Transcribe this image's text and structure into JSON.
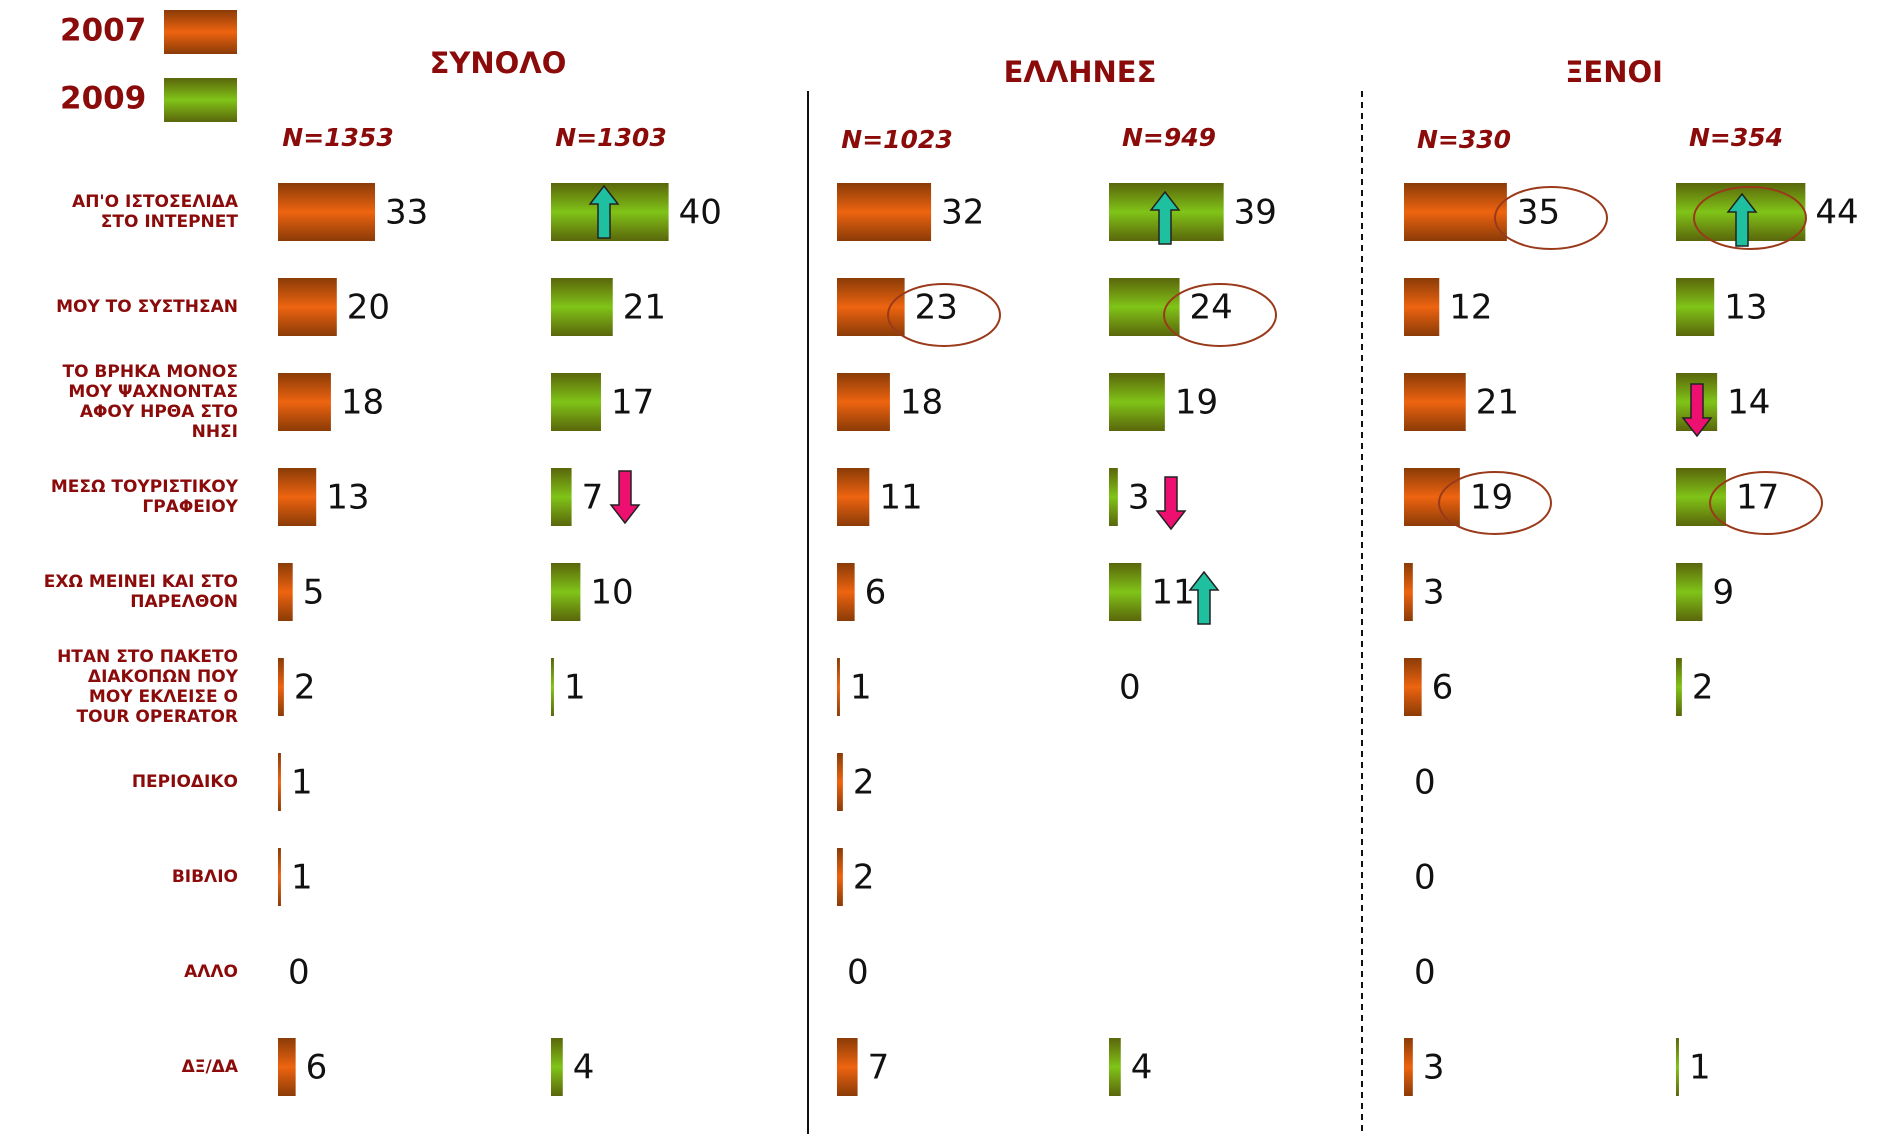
{
  "chart_data": {
    "type": "bar",
    "legend": [
      {
        "name": "2007",
        "color": "#ee6410"
      },
      {
        "name": "2009",
        "color": "#80c418"
      }
    ],
    "categories": [
      [
        "ΑΠ'Ο ΙΣΤΟΣΕΛΙΔΑ",
        "ΣΤΟ ΙΝΤΕΡΝΕΤ"
      ],
      [
        "ΜΟΥ ΤΟ ΣΥΣΤΗΣΑΝ"
      ],
      [
        "ΤΟ ΒΡΗΚΑ ΜΟΝΟΣ",
        "ΜΟΥ ΨΑΧΝΟΝΤΑΣ",
        "ΑΦΟΥ ΗΡΘΑ ΣΤΟ",
        "ΝΗΣΙ"
      ],
      [
        "ΜΕΣΩ ΤΟΥΡΙΣΤΙΚΟΥ",
        "ΓΡΑΦΕΙΟΥ"
      ],
      [
        "ΕΧΩ ΜΕΙΝΕΙ ΚΑΙ ΣΤΟ",
        "ΠΑΡΕΛΘΟΝ"
      ],
      [
        "ΗΤΑΝ ΣΤΟ ΠΑΚΕΤΟ",
        "ΔΙΑΚΟΠΩΝ ΠΟΥ",
        "ΜΟΥ ΕΚΛΕΙΣΕ Ο",
        "TOUR OPERATOR"
      ],
      [
        "ΠΕΡΙΟΔΙΚΟ"
      ],
      [
        "ΒΙΒΛΙΟ"
      ],
      [
        "ΑΛΛΟ"
      ],
      [
        "ΔΞ/ΔΑ"
      ]
    ],
    "groups": [
      {
        "title": "ΣΥΝΟΛΟ",
        "series": [
          {
            "name": "N=1353",
            "values": [
              33,
              20,
              18,
              13,
              5,
              2,
              1,
              1,
              0,
              6
            ]
          },
          {
            "name": "N=1303",
            "values": [
              40,
              21,
              17,
              7,
              10,
              1,
              null,
              null,
              null,
              4
            ]
          }
        ]
      },
      {
        "title": "ΕΛΛΗΝΕΣ",
        "series": [
          {
            "name": "N=1023",
            "values": [
              32,
              23,
              18,
              11,
              6,
              1,
              2,
              2,
              0,
              7
            ]
          },
          {
            "name": "N=949",
            "values": [
              39,
              24,
              19,
              3,
              11,
              0,
              null,
              null,
              null,
              4
            ]
          }
        ]
      },
      {
        "title": "ΞΕΝΟΙ",
        "series": [
          {
            "name": "N=330",
            "values": [
              35,
              12,
              21,
              19,
              3,
              6,
              0,
              0,
              0,
              3
            ]
          },
          {
            "name": "N=354",
            "values": [
              44,
              13,
              14,
              17,
              9,
              2,
              null,
              null,
              null,
              1
            ]
          }
        ]
      }
    ]
  }
}
